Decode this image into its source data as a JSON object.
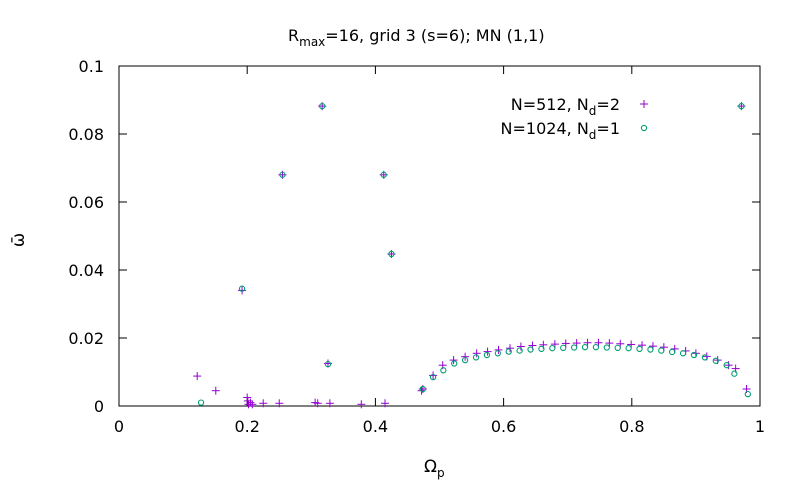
{
  "chart_data": {
    "type": "scatter",
    "title": {
      "main": "R",
      "sub": "max",
      "rest": "=16, grid 3 (s=6); MN (1,1)"
    },
    "xlabel": {
      "main": "Ω",
      "sub": "p"
    },
    "ylabel": "ω̄",
    "xlim": [
      0,
      1
    ],
    "ylim": [
      0,
      0.1
    ],
    "x_ticks": [
      "0",
      "0.2",
      "0.4",
      "0.6",
      "0.8",
      "1"
    ],
    "y_ticks": [
      "0",
      "0.02",
      "0.04",
      "0.06",
      "0.08",
      "0.1"
    ],
    "grid": false,
    "legend_position": "top-right",
    "series": [
      {
        "name_main": "N=512, N",
        "name_sub": "d",
        "name_end": "=2",
        "marker": "plus",
        "color": "#9400d3",
        "points": [
          [
            0.122,
            0.0088
          ],
          [
            0.151,
            0.0045
          ],
          [
            0.192,
            0.034
          ],
          [
            0.2,
            0.0025
          ],
          [
            0.201,
            0.0015
          ],
          [
            0.202,
            0.0005
          ],
          [
            0.205,
            0.001
          ],
          [
            0.208,
            0.0005
          ],
          [
            0.225,
            0.0008
          ],
          [
            0.25,
            0.0008
          ],
          [
            0.255,
            0.068
          ],
          [
            0.306,
            0.001
          ],
          [
            0.31,
            0.0008
          ],
          [
            0.317,
            0.0882
          ],
          [
            0.326,
            0.0125
          ],
          [
            0.329,
            0.0008
          ],
          [
            0.378,
            0.0005
          ],
          [
            0.413,
            0.068
          ],
          [
            0.415,
            0.0008
          ],
          [
            0.425,
            0.0447
          ],
          [
            0.472,
            0.0045
          ],
          [
            0.474,
            0.005
          ],
          [
            0.49,
            0.009
          ],
          [
            0.505,
            0.012
          ],
          [
            0.522,
            0.0135
          ],
          [
            0.54,
            0.0145
          ],
          [
            0.558,
            0.0155
          ],
          [
            0.575,
            0.016
          ],
          [
            0.592,
            0.0165
          ],
          [
            0.61,
            0.017
          ],
          [
            0.627,
            0.0175
          ],
          [
            0.645,
            0.0178
          ],
          [
            0.662,
            0.018
          ],
          [
            0.68,
            0.0182
          ],
          [
            0.697,
            0.0184
          ],
          [
            0.714,
            0.0185
          ],
          [
            0.731,
            0.0186
          ],
          [
            0.748,
            0.0186
          ],
          [
            0.765,
            0.0185
          ],
          [
            0.782,
            0.0183
          ],
          [
            0.799,
            0.0181
          ],
          [
            0.816,
            0.0179
          ],
          [
            0.833,
            0.0176
          ],
          [
            0.85,
            0.0173
          ],
          [
            0.867,
            0.0168
          ],
          [
            0.884,
            0.0162
          ],
          [
            0.9,
            0.0155
          ],
          [
            0.917,
            0.0146
          ],
          [
            0.934,
            0.0135
          ],
          [
            0.951,
            0.012
          ],
          [
            0.962,
            0.011
          ],
          [
            0.971,
            0.0882
          ],
          [
            0.979,
            0.005
          ]
        ]
      },
      {
        "name_main": "N=1024, N",
        "name_sub": "d",
        "name_end": "=1",
        "marker": "circle",
        "color": "#009e73",
        "points": [
          [
            0.128,
            0.001
          ],
          [
            0.192,
            0.0345
          ],
          [
            0.255,
            0.068
          ],
          [
            0.317,
            0.0882
          ],
          [
            0.326,
            0.0123
          ],
          [
            0.413,
            0.068
          ],
          [
            0.425,
            0.0447
          ],
          [
            0.474,
            0.005
          ],
          [
            0.49,
            0.0085
          ],
          [
            0.506,
            0.0105
          ],
          [
            0.523,
            0.0125
          ],
          [
            0.54,
            0.0135
          ],
          [
            0.557,
            0.0143
          ],
          [
            0.574,
            0.015
          ],
          [
            0.591,
            0.0155
          ],
          [
            0.608,
            0.016
          ],
          [
            0.625,
            0.0163
          ],
          [
            0.642,
            0.0166
          ],
          [
            0.659,
            0.0168
          ],
          [
            0.676,
            0.017
          ],
          [
            0.693,
            0.0171
          ],
          [
            0.71,
            0.0172
          ],
          [
            0.727,
            0.0173
          ],
          [
            0.744,
            0.0173
          ],
          [
            0.761,
            0.0172
          ],
          [
            0.778,
            0.0171
          ],
          [
            0.795,
            0.017
          ],
          [
            0.812,
            0.0168
          ],
          [
            0.829,
            0.0166
          ],
          [
            0.846,
            0.0163
          ],
          [
            0.863,
            0.0159
          ],
          [
            0.88,
            0.0155
          ],
          [
            0.897,
            0.015
          ],
          [
            0.914,
            0.0143
          ],
          [
            0.931,
            0.0133
          ],
          [
            0.948,
            0.012
          ],
          [
            0.96,
            0.0095
          ],
          [
            0.971,
            0.0882
          ],
          [
            0.981,
            0.0035
          ]
        ]
      }
    ]
  }
}
